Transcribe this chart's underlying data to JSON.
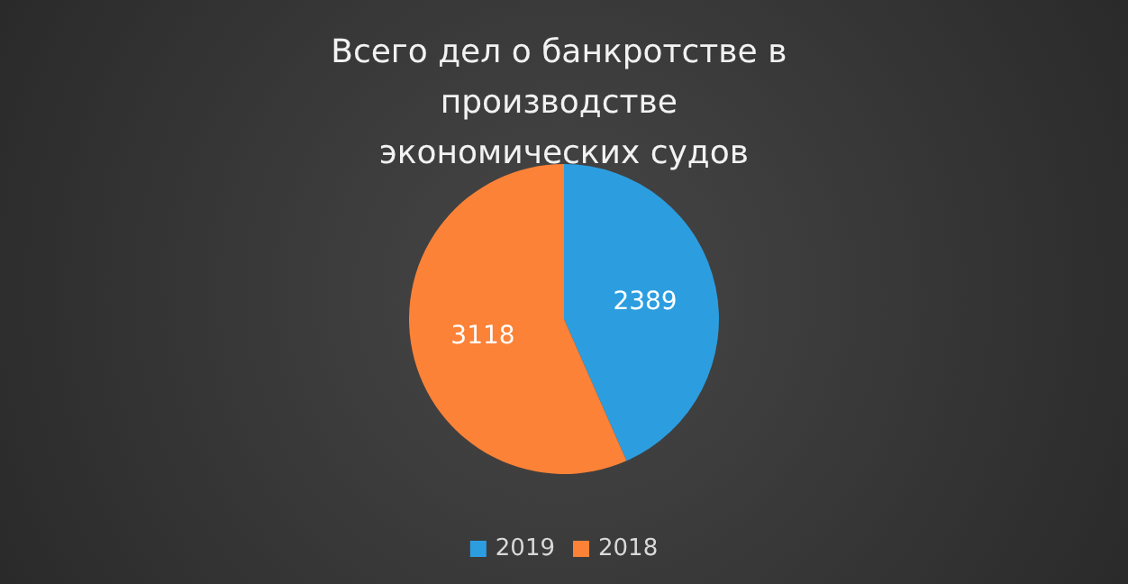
{
  "chart_data": {
    "type": "pie",
    "title": "Всего дел о банкротстве в производстве экономических судов",
    "categories": [
      "2019",
      "2018"
    ],
    "values": [
      2389,
      3118
    ],
    "colors": [
      "#2c9ee0",
      "#fb8237"
    ],
    "data_labels": true,
    "legend": "bottom"
  }
}
